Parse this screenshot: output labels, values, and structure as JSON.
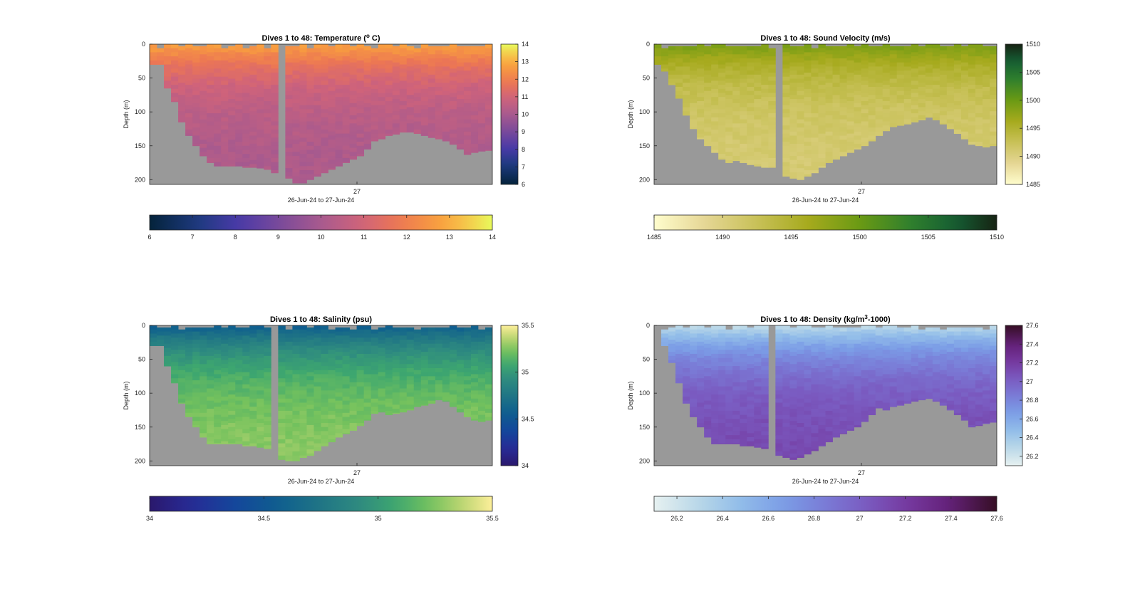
{
  "figure": {
    "background": "#ffffff",
    "mask_color": "#999999"
  },
  "chart_data": [
    {
      "type": "heatmap",
      "title": "Dives 1 to 48: Temperature (° C)",
      "title_parts": {
        "pre": "Dives 1 to 48: Temperature (",
        "sup": "o",
        "post": " C)"
      },
      "ylabel": "Depth (m)",
      "xlabel": "26-Jun-24 to 27-Jun-24",
      "x_tick_labels": [
        "27"
      ],
      "y_ticks": [
        0,
        50,
        100,
        150,
        200
      ],
      "ylim": [
        0,
        207
      ],
      "y_reversed": true,
      "colormap": "thermal",
      "clim": [
        6,
        14
      ],
      "colorbar_ticks": [
        6,
        7,
        8,
        9,
        10,
        11,
        12,
        13,
        14
      ],
      "colorbar_tick_labels": [
        "6",
        "7",
        "8",
        "9",
        "10",
        "11",
        "12",
        "13",
        "14"
      ],
      "hbar_ticks": [
        6,
        7,
        8,
        9,
        10,
        11,
        12,
        13,
        14
      ],
      "hbar_tick_labels": [
        "6",
        "7",
        "8",
        "9",
        "10",
        "11",
        "12",
        "13",
        "14"
      ],
      "columns": 48,
      "max_depth_by_dive": [
        30,
        30,
        65,
        85,
        115,
        135,
        150,
        165,
        175,
        180,
        180,
        180,
        180,
        182,
        182,
        183,
        185,
        190,
        0,
        198,
        205,
        205,
        200,
        195,
        190,
        185,
        180,
        175,
        170,
        165,
        155,
        143,
        140,
        135,
        133,
        130,
        130,
        132,
        135,
        138,
        140,
        143,
        148,
        155,
        163,
        160,
        158,
        157
      ],
      "profile_values": {
        "surface": 12.9,
        "deep": 10.0,
        "deep_scale_m": 55
      }
    },
    {
      "type": "heatmap",
      "title": "Dives 1 to 48: Sound Velocity (m/s)",
      "ylabel": "Depth (m)",
      "xlabel": "26-Jun-24 to 27-Jun-24",
      "x_tick_labels": [
        "27"
      ],
      "y_ticks": [
        0,
        50,
        100,
        150,
        200
      ],
      "ylim": [
        0,
        207
      ],
      "y_reversed": true,
      "colormap": "speed",
      "clim": [
        1485,
        1510
      ],
      "colorbar_ticks": [
        1485,
        1490,
        1495,
        1500,
        1505,
        1510
      ],
      "colorbar_tick_labels": [
        "1485",
        "1490",
        "1495",
        "1500",
        "1505",
        "1510"
      ],
      "hbar_ticks": [
        1485,
        1490,
        1495,
        1500,
        1505,
        1510
      ],
      "hbar_tick_labels": [
        "1485",
        "1490",
        "1495",
        "1500",
        "1505",
        "1510"
      ],
      "columns": 48,
      "max_depth_by_dive": [
        30,
        40,
        60,
        80,
        105,
        125,
        140,
        150,
        160,
        170,
        175,
        172,
        175,
        178,
        180,
        182,
        182,
        0,
        195,
        198,
        200,
        195,
        190,
        182,
        175,
        170,
        165,
        160,
        155,
        150,
        143,
        135,
        128,
        122,
        120,
        118,
        115,
        112,
        108,
        112,
        118,
        125,
        132,
        140,
        148,
        150,
        152,
        150
      ],
      "profile_values": {
        "surface": 1499.5,
        "deep": 1490.5,
        "deep_scale_m": 55
      }
    },
    {
      "type": "heatmap",
      "title": "Dives 1 to 48: Salinity (psu)",
      "ylabel": "Depth (m)",
      "xlabel": "26-Jun-24 to 27-Jun-24",
      "x_tick_labels": [
        "27"
      ],
      "y_ticks": [
        0,
        50,
        100,
        150,
        200
      ],
      "ylim": [
        0,
        207
      ],
      "y_reversed": true,
      "colormap": "haline",
      "clim": [
        34,
        35.5
      ],
      "colorbar_ticks": [
        34,
        34.5,
        35,
        35.5
      ],
      "colorbar_tick_labels": [
        "34",
        "34.5",
        "35",
        "35.5"
      ],
      "hbar_ticks": [
        34,
        34.5,
        35,
        35.5
      ],
      "hbar_tick_labels": [
        "34",
        "34.5",
        "35",
        "35.5"
      ],
      "columns": 48,
      "max_depth_by_dive": [
        30,
        30,
        60,
        85,
        115,
        135,
        150,
        165,
        175,
        175,
        175,
        175,
        175,
        178,
        178,
        180,
        182,
        0,
        198,
        200,
        200,
        195,
        192,
        185,
        178,
        172,
        165,
        160,
        155,
        148,
        140,
        130,
        128,
        132,
        130,
        128,
        125,
        120,
        118,
        115,
        110,
        112,
        120,
        128,
        135,
        140,
        142,
        140
      ],
      "profile_values": {
        "surface": 34.55,
        "deep": 35.3,
        "deep_scale_m": 55
      }
    },
    {
      "type": "heatmap",
      "title": "Dives 1 to 48: Density (kg/m³-1000)",
      "title_parts": {
        "pre": "Dives 1 to 48: Density (kg/m",
        "sup": "3",
        "post": "-1000)"
      },
      "ylabel": "Depth (m)",
      "xlabel": "26-Jun-24 to 27-Jun-24",
      "x_tick_labels": [
        "27"
      ],
      "y_ticks": [
        0,
        50,
        100,
        150,
        200
      ],
      "ylim": [
        0,
        207
      ],
      "y_reversed": true,
      "colormap": "dense",
      "clim": [
        26.1,
        27.6
      ],
      "colorbar_ticks": [
        26.2,
        26.4,
        26.6,
        26.8,
        27,
        27.2,
        27.4,
        27.6
      ],
      "colorbar_tick_labels": [
        "26.2",
        "26.4",
        "26.6",
        "26.8",
        "27",
        "27.2",
        "27.4",
        "27.6"
      ],
      "hbar_ticks": [
        26.2,
        26.4,
        26.6,
        26.8,
        27,
        27.2,
        27.4,
        27.6
      ],
      "hbar_tick_labels": [
        "26.2",
        "26.4",
        "26.6",
        "26.8",
        "27",
        "27.2",
        "27.4",
        "27.6"
      ],
      "columns": 48,
      "max_depth_by_dive": [
        0,
        30,
        55,
        85,
        115,
        135,
        150,
        165,
        175,
        175,
        175,
        175,
        178,
        178,
        180,
        182,
        0,
        192,
        195,
        198,
        195,
        190,
        185,
        178,
        172,
        165,
        160,
        155,
        150,
        142,
        132,
        122,
        125,
        120,
        118,
        115,
        112,
        110,
        108,
        112,
        118,
        125,
        132,
        140,
        150,
        148,
        145,
        143
      ],
      "profile_values": {
        "surface": 26.25,
        "deep": 27.15,
        "deep_scale_m": 55
      }
    }
  ]
}
